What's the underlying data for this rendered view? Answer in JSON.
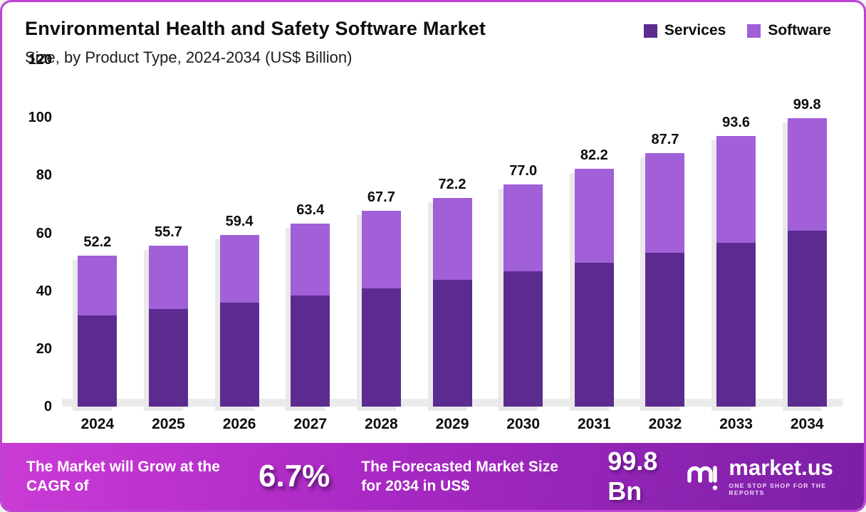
{
  "header": {
    "title": "Environmental Health and Safety Software Market",
    "subtitle": "Size, by Product Type, 2024-2034 (US$ Billion)"
  },
  "legend": [
    {
      "label": "Services",
      "color": "#5b2b8f"
    },
    {
      "label": "Software",
      "color": "#a15fd8"
    }
  ],
  "chart_data": {
    "type": "bar",
    "stacked": true,
    "title": "Environmental Health and Safety Software Market Size, by Product Type, 2024-2034 (US$ Billion)",
    "categories": [
      "2024",
      "2025",
      "2026",
      "2027",
      "2028",
      "2029",
      "2030",
      "2031",
      "2032",
      "2033",
      "2034"
    ],
    "series": [
      {
        "name": "Services",
        "color": "#5b2b8f",
        "values": [
          31.5,
          33.8,
          36.0,
          38.4,
          41.0,
          43.8,
          46.7,
          49.8,
          53.2,
          56.8,
          60.8
        ]
      },
      {
        "name": "Software",
        "color": "#a15fd8",
        "values": [
          20.7,
          21.9,
          23.4,
          25.0,
          26.7,
          28.4,
          30.3,
          32.4,
          34.5,
          36.8,
          39.0
        ]
      }
    ],
    "totals": [
      52.2,
      55.7,
      59.4,
      63.4,
      67.7,
      72.2,
      77.0,
      82.2,
      87.7,
      93.6,
      99.8
    ],
    "xlabel": "",
    "ylabel": "",
    "ylim": [
      0,
      120
    ],
    "yticks": [
      0,
      20,
      40,
      60,
      80,
      100,
      120
    ],
    "grid": false,
    "legend_position": "top-right"
  },
  "footer": {
    "cagr_label": "The Market will Grow at the CAGR of",
    "cagr_value": "6.7%",
    "forecast_label": "The Forecasted Market Size for 2034 in US$",
    "forecast_value": "99.8 Bn",
    "brand": "market.us",
    "brand_tagline": "ONE STOP SHOP FOR THE REPORTS"
  },
  "colors": {
    "services": "#5b2b8f",
    "software": "#a15fd8",
    "border": "#bc43d4",
    "footer_gradient_start": "#cb3bd6",
    "footer_gradient_end": "#7b20a6",
    "baseline": "#ebebeb"
  }
}
